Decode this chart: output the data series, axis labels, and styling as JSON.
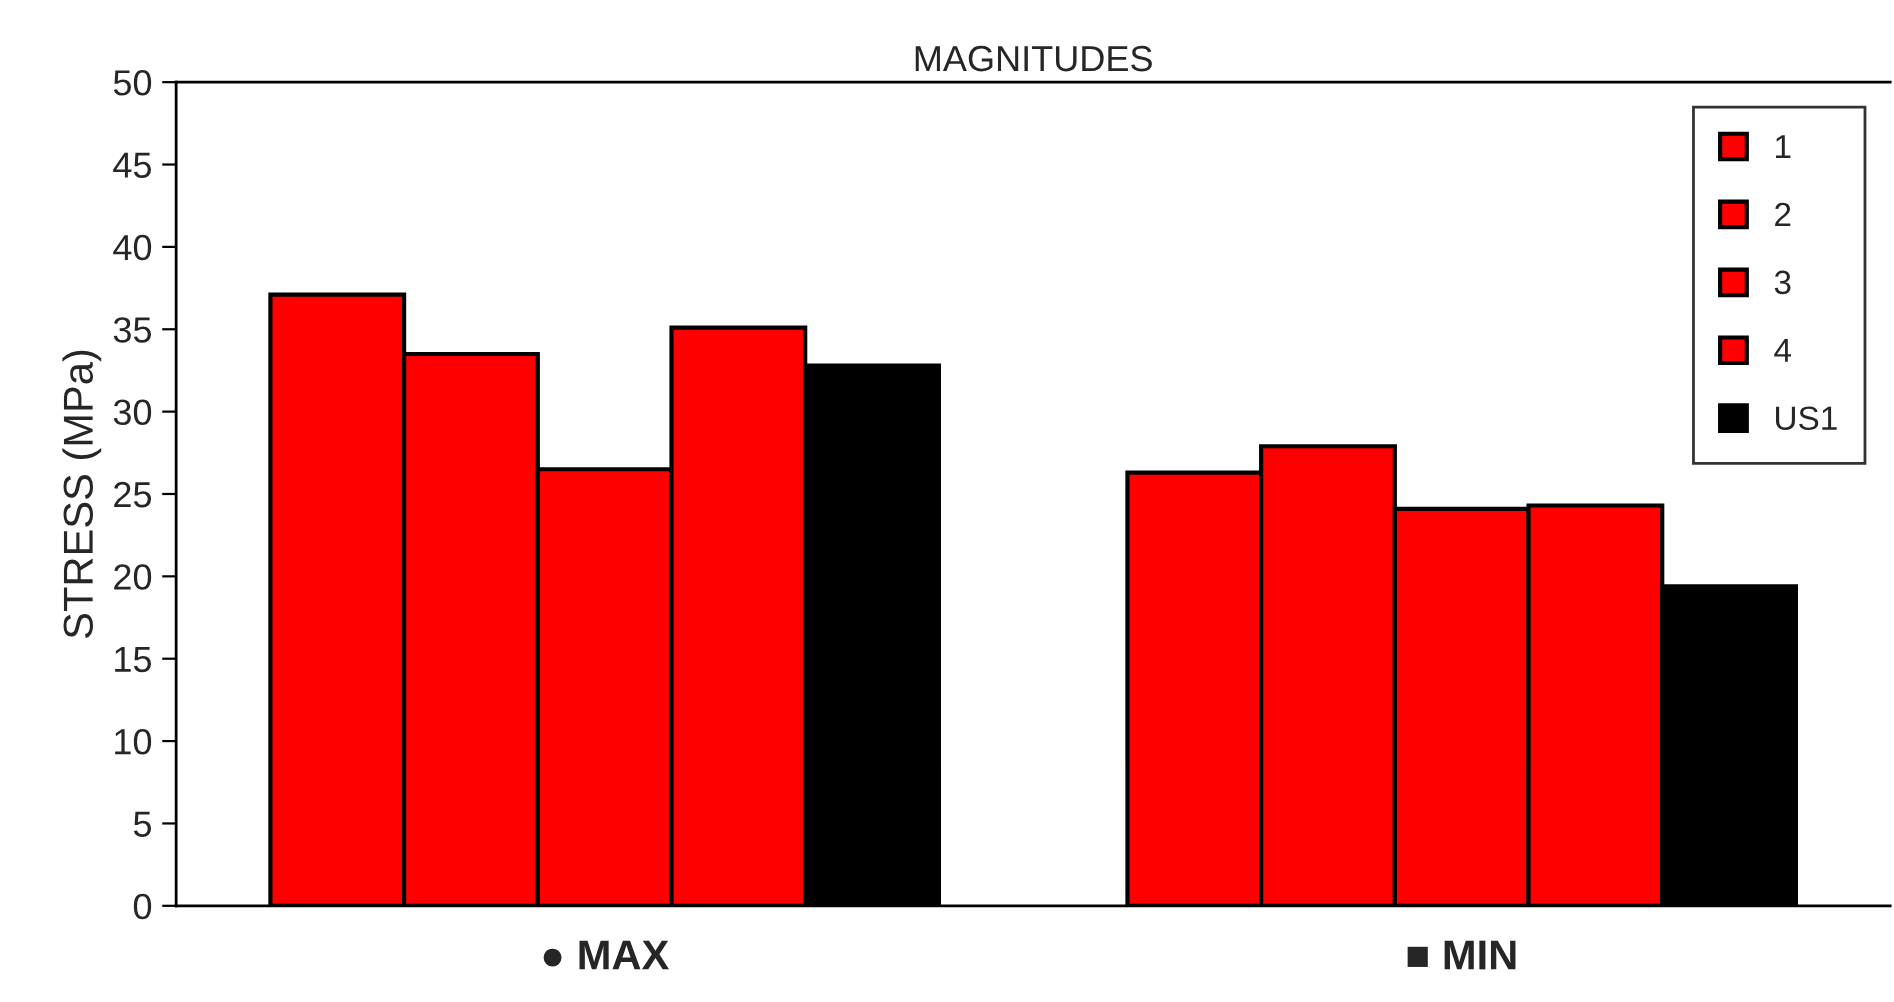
{
  "chart_data": {
    "type": "bar",
    "title": "MAGNITUDES",
    "ylabel": "STRESS (MPa)",
    "categories": [
      "● MAX",
      "■ MIN"
    ],
    "series": [
      {
        "name": "1",
        "color": "#ff0000",
        "values": [
          37.1,
          26.3
        ]
      },
      {
        "name": "2",
        "color": "#ff0000",
        "values": [
          33.5,
          27.9
        ]
      },
      {
        "name": "3",
        "color": "#ff0000",
        "values": [
          26.5,
          24.1
        ]
      },
      {
        "name": "4",
        "color": "#ff0000",
        "values": [
          35.1,
          24.3
        ]
      },
      {
        "name": "US1",
        "color": "#000000",
        "values": [
          32.8,
          19.4
        ]
      }
    ],
    "ylim": [
      0,
      50
    ],
    "yticks": [
      0,
      5,
      10,
      15,
      20,
      25,
      30,
      35,
      40,
      45,
      50
    ],
    "grid": false,
    "legend": "top right"
  }
}
